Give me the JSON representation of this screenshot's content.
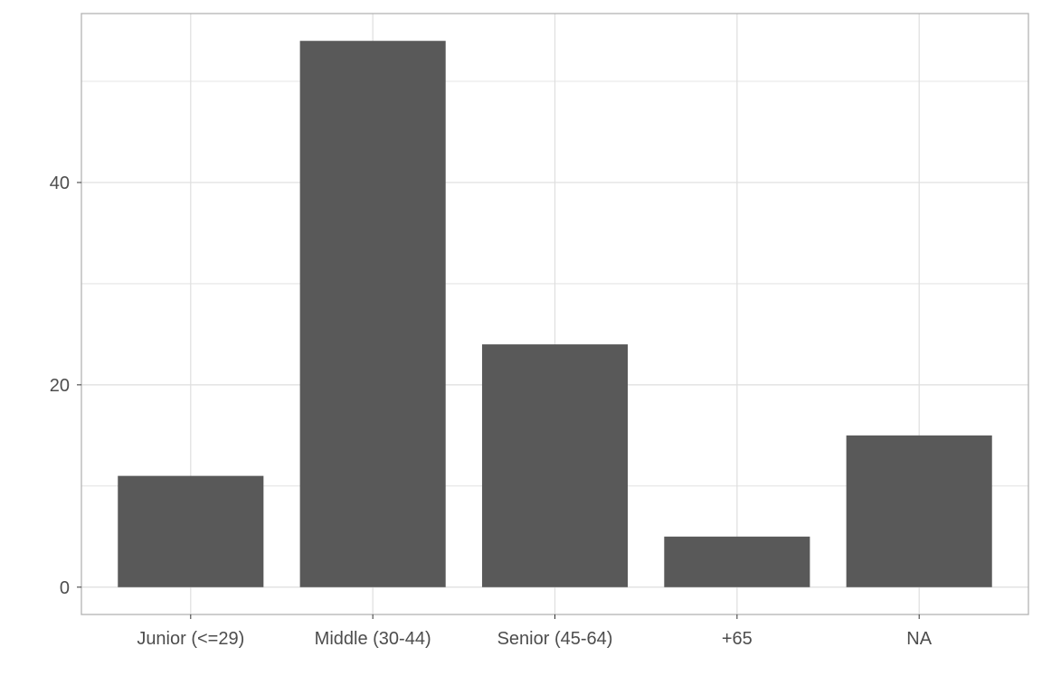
{
  "chart_data": {
    "type": "bar",
    "title": "",
    "xlabel": "",
    "ylabel": "",
    "categories": [
      "Junior (<=29)",
      "Middle (30-44)",
      "Senior (45-64)",
      "+65",
      "NA"
    ],
    "values": [
      11,
      54,
      24,
      5,
      15
    ],
    "ylim": [
      -2.7,
      56.7
    ],
    "yticks": [
      0,
      20,
      40
    ],
    "ytick_labels": [
      "0",
      "20",
      "40"
    ],
    "minor_yticks": [
      10,
      30,
      50
    ],
    "grid": true,
    "legend": "none",
    "colors": {
      "bar": "#595959",
      "grid": "#dedede",
      "panel_border": "#b3b3b3",
      "text": "#4d4d4d"
    }
  }
}
